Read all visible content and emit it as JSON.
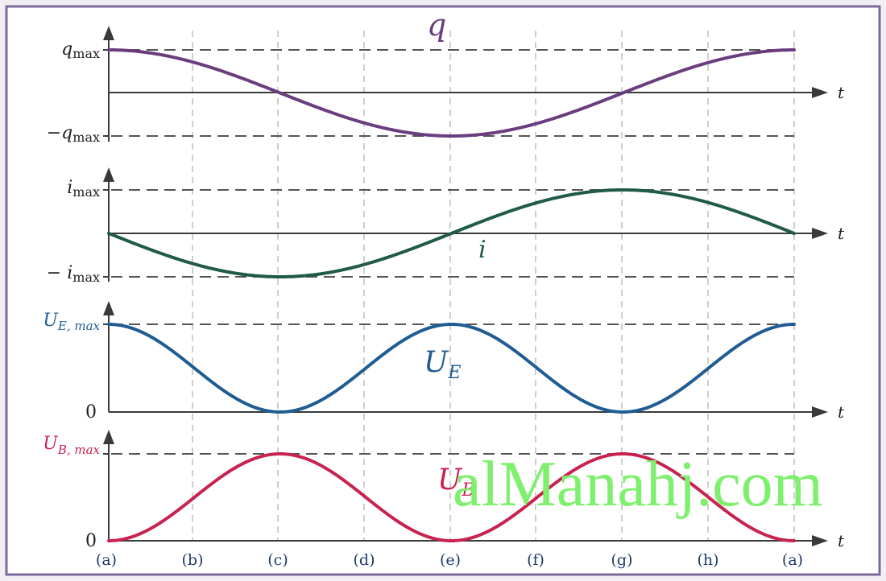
{
  "chart_data": [
    {
      "type": "line",
      "series": [
        {
          "name": "q",
          "function": "q_max·cos(2πt/T)",
          "values": [
            1,
            0.707,
            0,
            -0.707,
            -1,
            -0.707,
            0,
            0.707,
            1
          ]
        }
      ],
      "x": [
        "(a)",
        "(b)",
        "(c)",
        "(d)",
        "(e)",
        "(f)",
        "(g)",
        "(h)",
        "(a)"
      ],
      "ytick_labels": [
        "q",
        "max",
        "−q",
        "max"
      ],
      "xlabel": "t",
      "curve_label": "q",
      "ylim": [
        -1,
        1
      ],
      "color": "#6b3d7f"
    },
    {
      "type": "line",
      "series": [
        {
          "name": "i",
          "function": "−i_max·sin(2πt/T)",
          "values": [
            0,
            -0.707,
            -1,
            -0.707,
            0,
            0.707,
            1,
            0.707,
            0
          ]
        }
      ],
      "x": [
        "(a)",
        "(b)",
        "(c)",
        "(d)",
        "(e)",
        "(f)",
        "(g)",
        "(h)",
        "(a)"
      ],
      "ytick_labels": [
        "i",
        "max",
        "− i",
        "max"
      ],
      "xlabel": "t",
      "curve_label": "i",
      "ylim": [
        -1,
        1
      ],
      "color": "#1f5b45"
    },
    {
      "type": "line",
      "series": [
        {
          "name": "U_E",
          "function": "U_E,max·cos²(2πt/T)",
          "values": [
            1,
            0.5,
            0,
            0.5,
            1,
            0.5,
            0,
            0.5,
            1
          ]
        }
      ],
      "x": [
        "(a)",
        "(b)",
        "(c)",
        "(d)",
        "(e)",
        "(f)",
        "(g)",
        "(h)",
        "(a)"
      ],
      "ytick_labels": [
        "U",
        "E, max",
        "0"
      ],
      "xlabel": "t",
      "curve_label": {
        "main": "U",
        "sub": "E"
      },
      "ylim": [
        0,
        1
      ],
      "color": "#1f5c93"
    },
    {
      "type": "line",
      "series": [
        {
          "name": "U_B",
          "function": "U_B,max·sin²(2πt/T)",
          "values": [
            0,
            0.5,
            1,
            0.5,
            0,
            0.5,
            1,
            0.5,
            0
          ]
        }
      ],
      "x": [
        "(a)",
        "(b)",
        "(c)",
        "(d)",
        "(e)",
        "(f)",
        "(g)",
        "(h)",
        "(a)"
      ],
      "ytick_labels": [
        "U",
        "B, max",
        "0"
      ],
      "xlabel": "t",
      "curve_label": {
        "main": "U",
        "sub": "B"
      },
      "ylim": [
        0,
        1
      ],
      "color": "#c8234f"
    }
  ],
  "time_labels": [
    "(a)",
    "(b)",
    "(c)",
    "(d)",
    "(e)",
    "(f)",
    "(g)",
    "(h)",
    "(a)"
  ],
  "watermark": "alManahj.com"
}
